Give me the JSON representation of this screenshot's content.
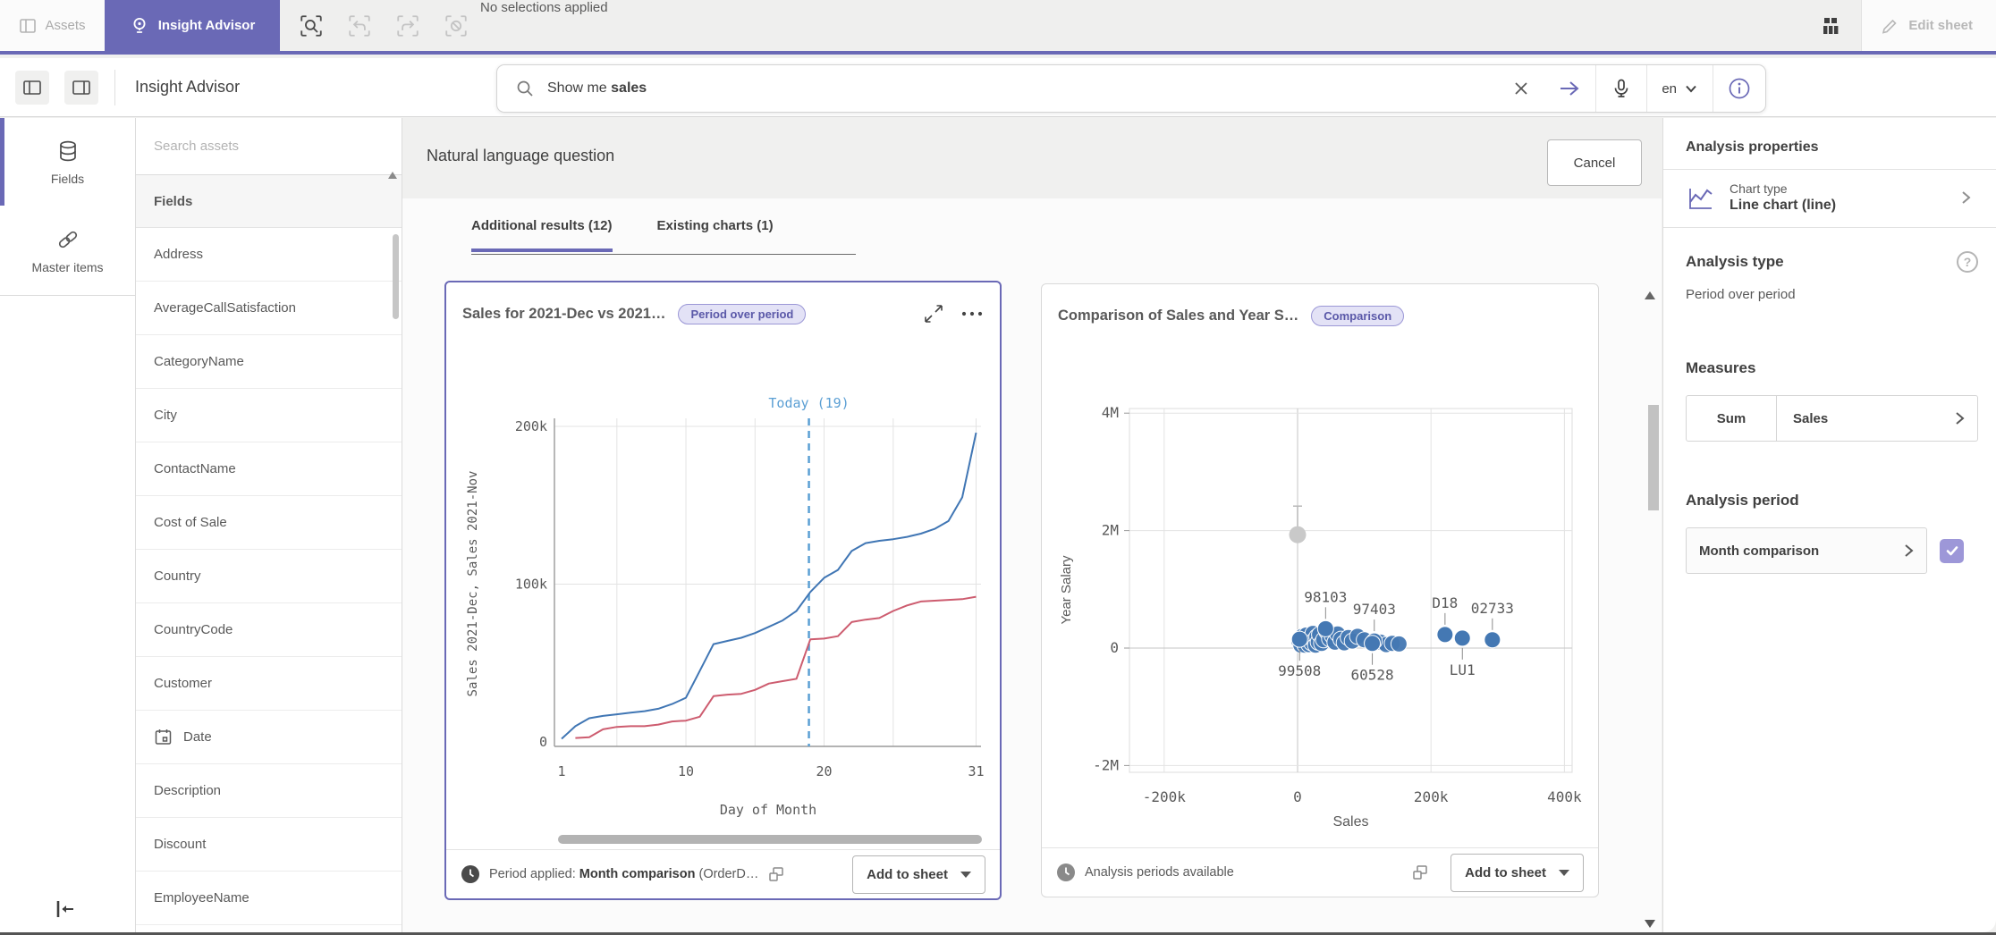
{
  "topbar": {
    "assets_tab": "Assets",
    "insight_advisor_tab": "Insight Advisor",
    "no_selections": "No selections applied",
    "edit_sheet": "Edit sheet"
  },
  "header": {
    "title": "Insight Advisor",
    "search_prefix": "Show me ",
    "search_term": "sales",
    "language": "en"
  },
  "nav_rail": {
    "fields_label": "Fields",
    "master_items_label": "Master items"
  },
  "assets_panel": {
    "search_placeholder": "Search assets",
    "section_header": "Fields",
    "calendar_field": "Date",
    "fields": [
      "Address",
      "AverageCallSatisfaction",
      "CategoryName",
      "City",
      "ContactName",
      "Cost of Sale",
      "Country",
      "CountryCode",
      "Customer",
      "Date",
      "Description",
      "Discount",
      "EmployeeName"
    ]
  },
  "main": {
    "heading": "Natural language question",
    "cancel_label": "Cancel",
    "tabs": [
      {
        "label": "Additional results (12)",
        "active": true
      },
      {
        "label": "Existing charts (1)",
        "active": false
      }
    ]
  },
  "cards": [
    {
      "title": "Sales for 2021-Dec vs 2021…",
      "badge": "Period over period",
      "footer_prefix": "Period applied: ",
      "footer_bold": "Month comparison",
      "footer_suffix": " (OrderD…",
      "button_label": "Add to sheet"
    },
    {
      "title": "Comparison of Sales and Year S…",
      "badge": "Comparison",
      "footer_text": "Analysis periods available",
      "button_label": "Add to sheet"
    }
  ],
  "properties_panel": {
    "title": "Analysis properties",
    "chart_type_label": "Chart type",
    "chart_type_value": "Line chart (line)",
    "analysis_type_label": "Analysis type",
    "analysis_type_value": "Period over period",
    "measures_label": "Measures",
    "measure_aggregation": "Sum",
    "measure_field": "Sales",
    "analysis_period_label": "Analysis period",
    "analysis_period_value": "Month comparison",
    "help_glyph": "?"
  },
  "colors": {
    "accent": "#6a69b6",
    "line_blue": "#4076b4",
    "line_red": "#cd5c6f",
    "today_blue": "#5b9fd4",
    "dot_blue": "#4478b3",
    "dot_gray": "#c9c9c9",
    "grid": "#e3e3e3",
    "grid_dark": "#c6c6c6",
    "axis": "#9a9a9a",
    "tick_text": "#595959"
  },
  "chart_data": [
    {
      "type": "line",
      "title": "Sales for 2021-Dec vs 2021…",
      "badge": "Period over period",
      "xlabel": "Day of Month",
      "ylabel": "Sales 2021-Dec, Sales 2021-Nov",
      "units": "thousands",
      "ylim": [
        0,
        200
      ],
      "y_ticks": [
        {
          "v": 0,
          "label": "0"
        },
        {
          "v": 100,
          "label": "100k"
        },
        {
          "v": 200,
          "label": "200k"
        }
      ],
      "x_ticks": [
        1,
        10,
        20,
        31
      ],
      "x_gridlines": [
        5,
        10,
        15,
        20,
        25,
        31
      ],
      "annotation": {
        "label": "Today (19)",
        "day": 18.9
      },
      "series": [
        {
          "name": "Sales 2021-Dec",
          "color_key": "line_blue",
          "values": [
            2,
            10,
            15,
            16.5,
            17.5,
            18.5,
            19.5,
            21,
            24,
            28,
            45,
            62,
            64,
            66,
            69,
            73,
            77,
            83,
            95,
            104,
            109,
            121,
            126,
            127.5,
            128.5,
            130,
            132,
            135,
            140,
            155,
            196
          ]
        },
        {
          "name": "Sales 2021-Nov",
          "color_key": "line_red",
          "values": [
            null,
            2.5,
            3,
            8,
            9.5,
            10,
            10,
            11,
            13,
            13.5,
            16,
            29,
            30,
            30.5,
            33,
            37,
            38.5,
            40,
            65,
            65.5,
            67,
            76,
            77.5,
            78.5,
            83,
            86.5,
            89,
            89.5,
            90,
            90.5,
            92
          ]
        }
      ]
    },
    {
      "type": "scatter",
      "title": "Comparison of Sales and Year S…",
      "badge": "Comparison",
      "xlabel": "Sales",
      "ylabel": "Year Salary",
      "x_units": "thousands",
      "y_units": "millions",
      "x_ticks": [
        {
          "v": -200,
          "label": "-200k"
        },
        {
          "v": 0,
          "label": "0"
        },
        {
          "v": 200,
          "label": "200k"
        },
        {
          "v": 400,
          "label": "400k"
        }
      ],
      "y_ticks": [
        {
          "v": -2,
          "label": "-2M"
        },
        {
          "v": 0,
          "label": "0"
        },
        {
          "v": 2,
          "label": "2M"
        },
        {
          "v": 4,
          "label": "4M"
        }
      ],
      "outlier": {
        "sales_k": 0,
        "salary_M": 1.93
      },
      "labeled_points": [
        {
          "sales_k": 42,
          "salary_M": 0.33,
          "label": "98103",
          "label_pos": "above"
        },
        {
          "sales_k": 115,
          "salary_M": 0.12,
          "label": "97403",
          "label_pos": "above"
        },
        {
          "sales_k": 3,
          "salary_M": 0.15,
          "label": "99508",
          "label_pos": "below"
        },
        {
          "sales_k": 112,
          "salary_M": 0.08,
          "label": "60528",
          "label_pos": "below"
        },
        {
          "sales_k": 221,
          "salary_M": 0.23,
          "label": "D18",
          "label_pos": "above"
        },
        {
          "sales_k": 247,
          "salary_M": 0.17,
          "label": "LU1",
          "label_pos": "below"
        },
        {
          "sales_k": 292,
          "salary_M": 0.14,
          "label": "02733",
          "label_pos": "above"
        }
      ],
      "points": [
        [
          2,
          0.12
        ],
        [
          5,
          0.05
        ],
        [
          7,
          0.2
        ],
        [
          9,
          0.1
        ],
        [
          11,
          0.05
        ],
        [
          13,
          0.22
        ],
        [
          15,
          0.12
        ],
        [
          17,
          0.06
        ],
        [
          19,
          0.17
        ],
        [
          21,
          0.09
        ],
        [
          23,
          0.25
        ],
        [
          25,
          0.13
        ],
        [
          27,
          0.05
        ],
        [
          29,
          0.19
        ],
        [
          31,
          0.1
        ],
        [
          33,
          0.23
        ],
        [
          36,
          0.08
        ],
        [
          39,
          0.14
        ],
        [
          44,
          0.28
        ],
        [
          48,
          0.16
        ],
        [
          52,
          0.21
        ],
        [
          56,
          0.1
        ],
        [
          60,
          0.24
        ],
        [
          65,
          0.15
        ],
        [
          70,
          0.09
        ],
        [
          76,
          0.18
        ],
        [
          82,
          0.12
        ],
        [
          90,
          0.2
        ],
        [
          100,
          0.14
        ],
        [
          124,
          0.1
        ],
        [
          133,
          0.06
        ],
        [
          142,
          0.08
        ],
        [
          152,
          0.07
        ]
      ]
    }
  ]
}
